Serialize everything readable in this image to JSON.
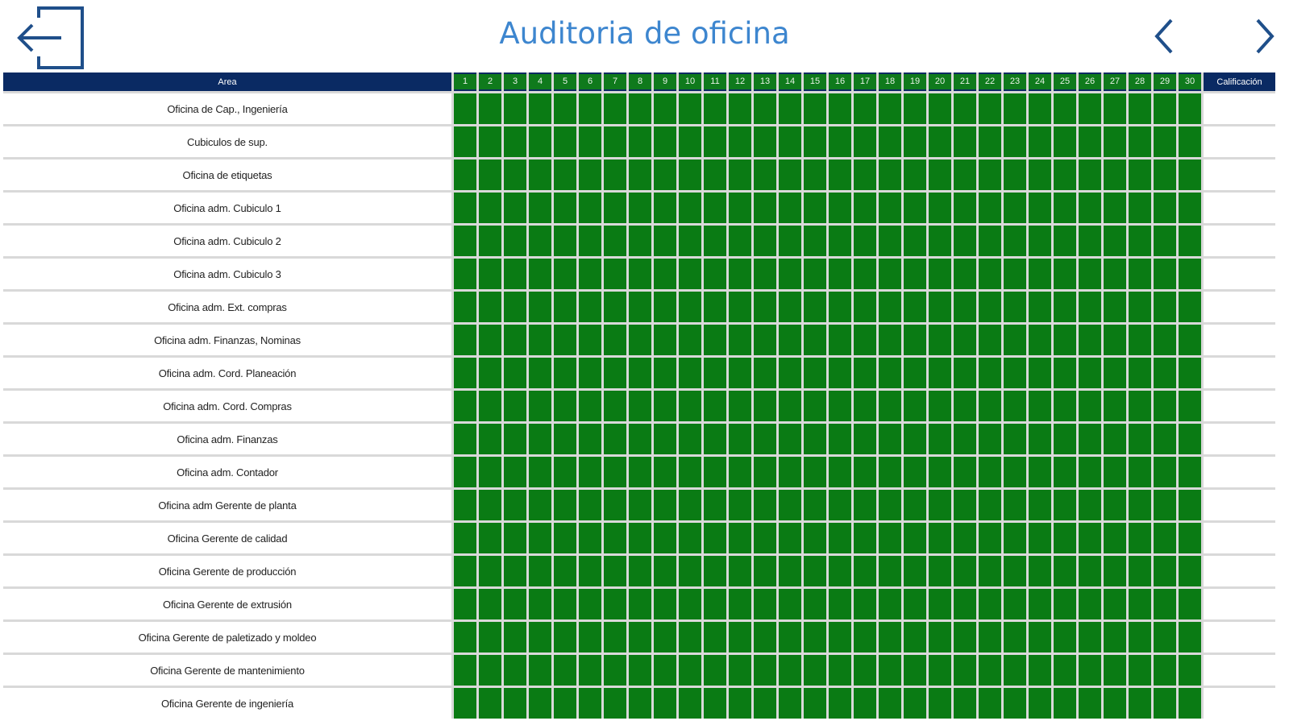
{
  "header": {
    "title": "Auditoria de oficina",
    "exit_icon": "exit-door-icon",
    "prev_icon": "chevron-left-icon",
    "next_icon": "chevron-right-icon"
  },
  "colors": {
    "title": "#3d86cf",
    "header_bg": "#0a2a63",
    "cell_ok": "#0a7b14",
    "gridline": "#d9d9d9"
  },
  "table": {
    "area_header": "Area",
    "score_header": "Calificación",
    "days": [
      "1",
      "2",
      "3",
      "4",
      "5",
      "6",
      "7",
      "8",
      "9",
      "10",
      "11",
      "12",
      "13",
      "14",
      "15",
      "16",
      "17",
      "18",
      "19",
      "20",
      "21",
      "22",
      "23",
      "24",
      "25",
      "26",
      "27",
      "28",
      "29",
      "30"
    ],
    "cell_status": "ok",
    "rows": [
      "Oficina de Cap., Ingeniería",
      "Cubiculos de sup.",
      "Oficina de etiquetas",
      "Oficina adm. Cubiculo 1",
      "Oficina adm. Cubiculo 2",
      "Oficina adm. Cubiculo 3",
      "Oficina adm. Ext. compras",
      "Oficina adm. Finanzas, Nominas",
      "Oficina adm. Cord. Planeación",
      "Oficina adm. Cord. Compras",
      "Oficina adm. Finanzas",
      "Oficina adm. Contador",
      "Oficina adm Gerente de planta",
      "Oficina Gerente de calidad",
      "Oficina Gerente de producción",
      "Oficina Gerente de extrusión",
      "Oficina Gerente de paletizado y moldeo",
      "Oficina Gerente de mantenimiento",
      "Oficina Gerente de ingeniería"
    ]
  }
}
